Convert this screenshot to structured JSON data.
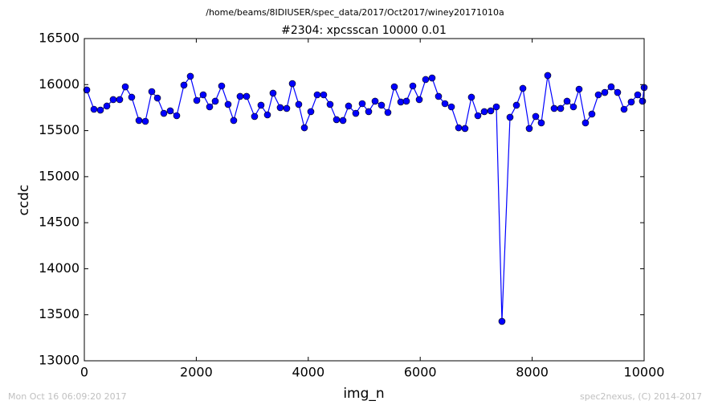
{
  "chart_data": {
    "type": "line",
    "suptitle": "/home/beams/8IDIUSER/spec_data/2017/Oct2017/winey20171010a",
    "title": "#2304: xpcsscan 10000 0.01",
    "xlabel": "img_n",
    "ylabel": "ccdc",
    "footer_left": "Mon Oct 16 06:09:20 2017",
    "footer_right": "spec2nexus, (C) 2014-2017",
    "xlim": [
      0,
      10000
    ],
    "ylim": [
      13000,
      16500
    ],
    "xticks": [
      0,
      2000,
      4000,
      6000,
      8000,
      10000
    ],
    "yticks": [
      13000,
      13500,
      14000,
      14500,
      15000,
      15500,
      16000,
      16500
    ],
    "x": [
      43,
      172,
      287,
      402,
      516,
      631,
      732,
      846,
      976,
      1090,
      1205,
      1306,
      1420,
      1535,
      1650,
      1779,
      1894,
      2009,
      2123,
      2238,
      2339,
      2453,
      2568,
      2668,
      2783,
      2898,
      3041,
      3156,
      3271,
      3371,
      3500,
      3615,
      3716,
      3830,
      3931,
      4046,
      4160,
      4275,
      4390,
      4505,
      4620,
      4720,
      4849,
      4964,
      5079,
      5194,
      5308,
      5423,
      5538,
      5653,
      5753,
      5868,
      5983,
      6097,
      6212,
      6327,
      6442,
      6557,
      6686,
      6800,
      6915,
      7030,
      7145,
      7260,
      7360,
      7460,
      7604,
      7719,
      7834,
      7948,
      8063,
      8163,
      8278,
      8393,
      8508,
      8623,
      8737,
      8838,
      8952,
      9067,
      9182,
      9297,
      9411,
      9526,
      9641,
      9770,
      9885,
      9971,
      10000
    ],
    "series": [
      {
        "color": "#0000ff",
        "values": [
          15942,
          15732,
          15723,
          15767,
          15837,
          15837,
          15976,
          15863,
          15610,
          15601,
          15924,
          15854,
          15688,
          15715,
          15662,
          15994,
          16090,
          15828,
          15889,
          15758,
          15820,
          15985,
          15785,
          15610,
          15872,
          15872,
          15654,
          15776,
          15671,
          15907,
          15750,
          15741,
          16011,
          15785,
          15531,
          15706,
          15889,
          15889,
          15785,
          15619,
          15610,
          15767,
          15688,
          15793,
          15706,
          15820,
          15776,
          15697,
          15976,
          15811,
          15820,
          15985,
          15837,
          16055,
          16072,
          15872,
          15793,
          15758,
          15531,
          15523,
          15863,
          15662,
          15706,
          15715,
          15758,
          13428,
          15645,
          15776,
          15959,
          15523,
          15654,
          15584,
          16099,
          15741,
          15741,
          15820,
          15758,
          15950,
          15584,
          15680,
          15889,
          15915,
          15976,
          15915,
          15732,
          15811,
          15889,
          15820,
          15968
        ]
      }
    ]
  }
}
